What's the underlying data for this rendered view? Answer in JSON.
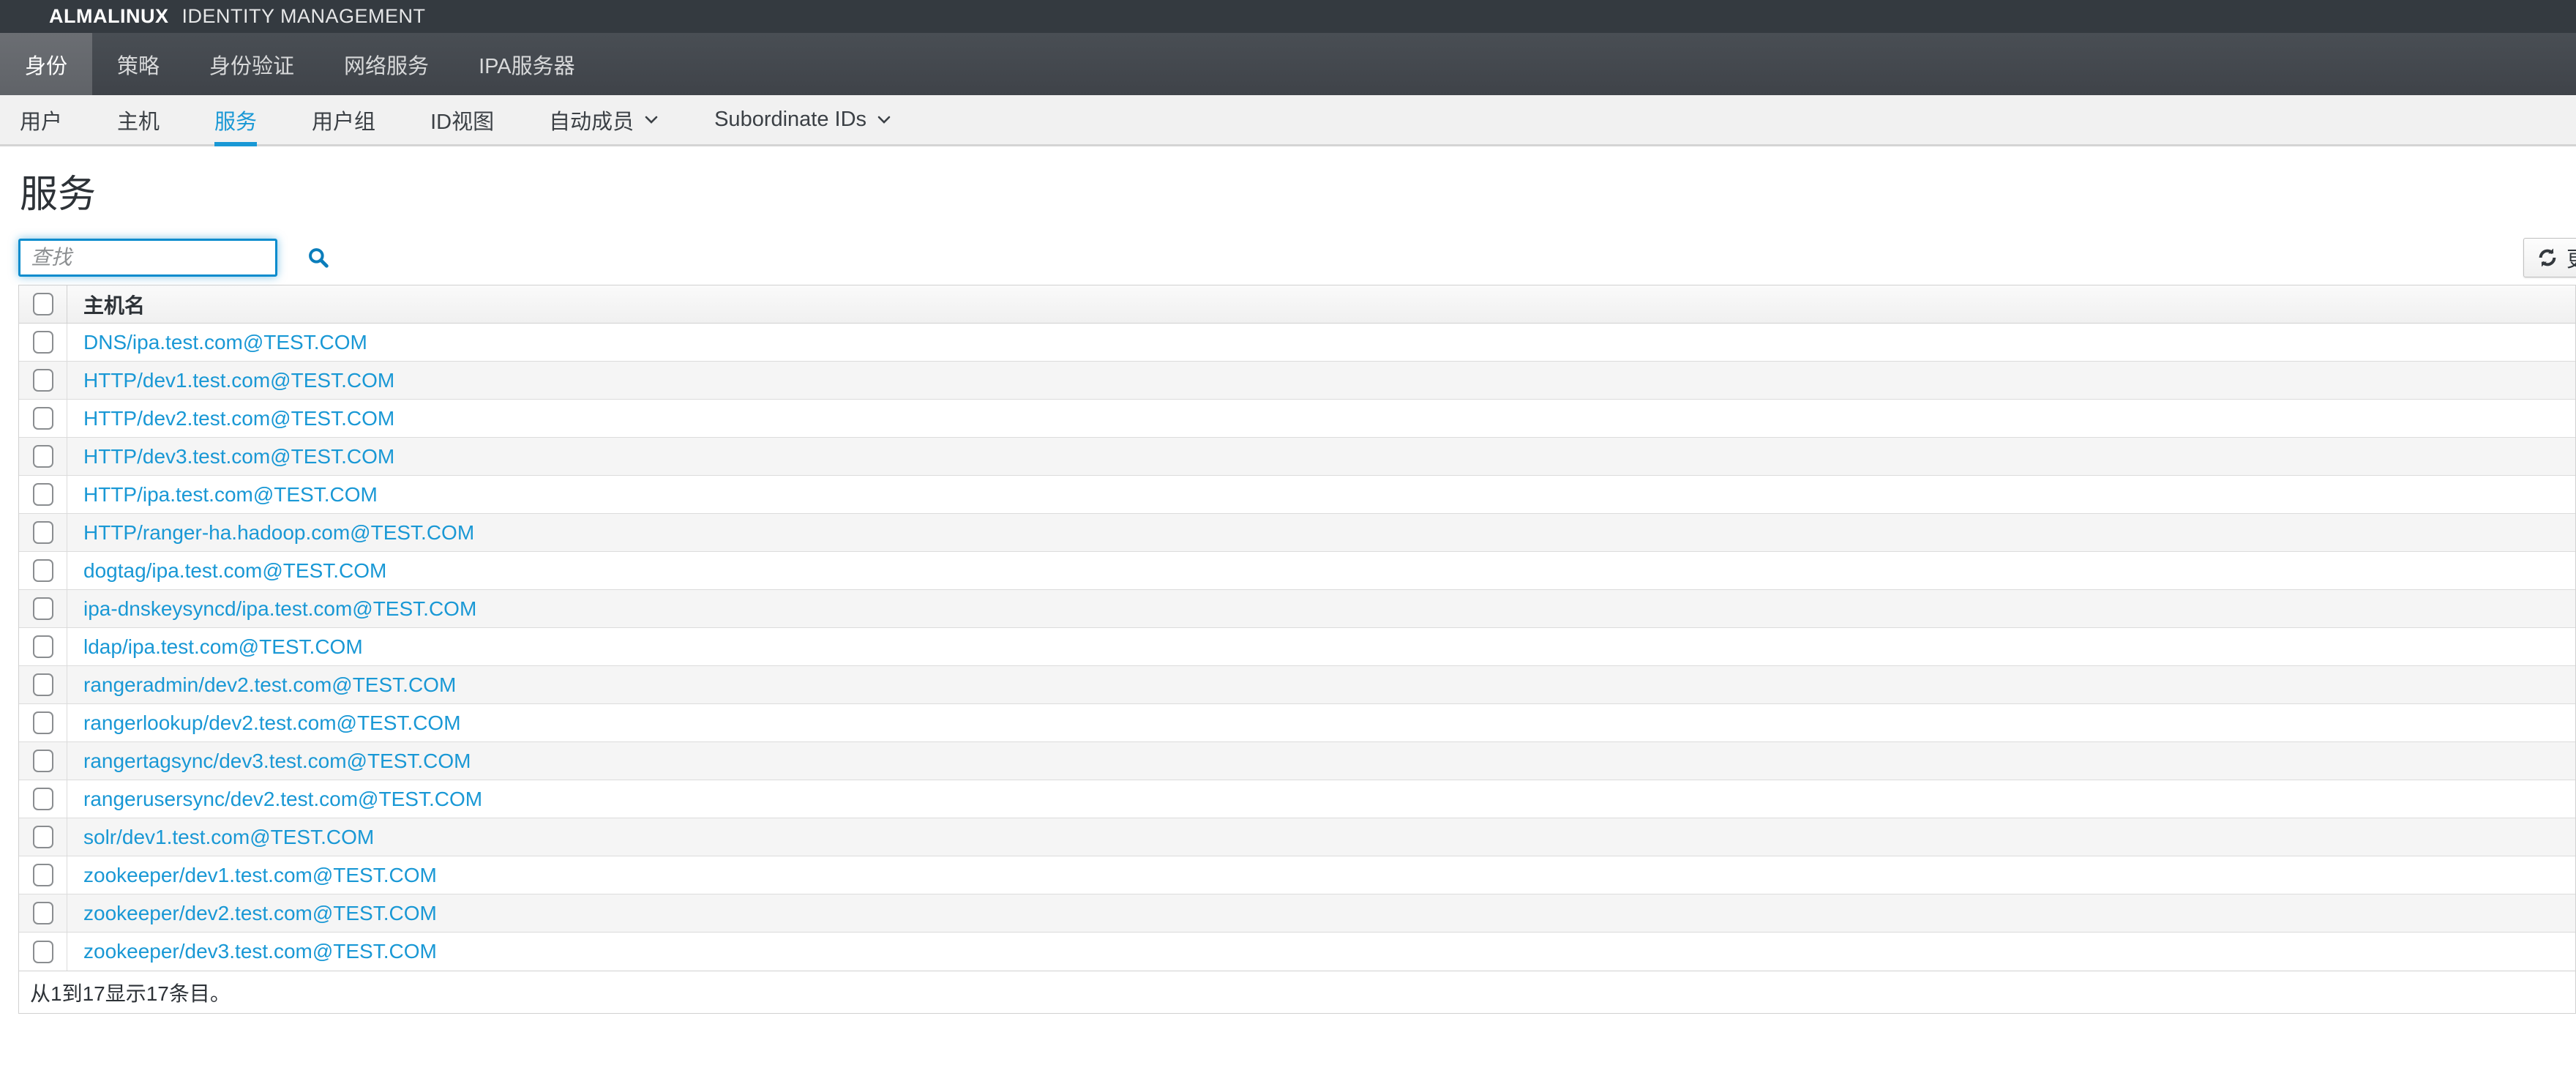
{
  "masthead": {
    "brand_primary": "ALMALINUX",
    "brand_secondary": "IDENTITY MANAGEMENT"
  },
  "primary_nav": {
    "items": [
      {
        "id": "identity",
        "label": "身份",
        "active": true
      },
      {
        "id": "policy",
        "label": "策略",
        "active": false
      },
      {
        "id": "authentication",
        "label": "身份验证",
        "active": false
      },
      {
        "id": "network-services",
        "label": "网络服务",
        "active": false
      },
      {
        "id": "ipa-server",
        "label": "IPA服务器",
        "active": false
      }
    ]
  },
  "secondary_nav": {
    "items": [
      {
        "id": "users",
        "label": "用户",
        "active": false,
        "caret": false
      },
      {
        "id": "hosts",
        "label": "主机",
        "active": false,
        "caret": false
      },
      {
        "id": "services",
        "label": "服务",
        "active": true,
        "caret": false
      },
      {
        "id": "user-groups",
        "label": "用户组",
        "active": false,
        "caret": false
      },
      {
        "id": "id-views",
        "label": "ID视图",
        "active": false,
        "caret": false
      },
      {
        "id": "automember",
        "label": "自动成员",
        "active": false,
        "caret": true
      },
      {
        "id": "subordinate-ids",
        "label": "Subordinate IDs",
        "active": false,
        "caret": true
      }
    ]
  },
  "page": {
    "title": "服务"
  },
  "search": {
    "placeholder": "查找",
    "value": ""
  },
  "toolbar": {
    "refresh_label": "更新"
  },
  "table": {
    "columns": [
      "主机名"
    ],
    "select_all_checked": false,
    "rows": [
      {
        "principal": "DNS/ipa.test.com@TEST.COM",
        "checked": false
      },
      {
        "principal": "HTTP/dev1.test.com@TEST.COM",
        "checked": false
      },
      {
        "principal": "HTTP/dev2.test.com@TEST.COM",
        "checked": false
      },
      {
        "principal": "HTTP/dev3.test.com@TEST.COM",
        "checked": false
      },
      {
        "principal": "HTTP/ipa.test.com@TEST.COM",
        "checked": false
      },
      {
        "principal": "HTTP/ranger-ha.hadoop.com@TEST.COM",
        "checked": false
      },
      {
        "principal": "dogtag/ipa.test.com@TEST.COM",
        "checked": false
      },
      {
        "principal": "ipa-dnskeysyncd/ipa.test.com@TEST.COM",
        "checked": false
      },
      {
        "principal": "ldap/ipa.test.com@TEST.COM",
        "checked": false
      },
      {
        "principal": "rangeradmin/dev2.test.com@TEST.COM",
        "checked": false
      },
      {
        "principal": "rangerlookup/dev2.test.com@TEST.COM",
        "checked": false
      },
      {
        "principal": "rangertagsync/dev3.test.com@TEST.COM",
        "checked": false
      },
      {
        "principal": "rangerusersync/dev2.test.com@TEST.COM",
        "checked": false
      },
      {
        "principal": "solr/dev1.test.com@TEST.COM",
        "checked": false
      },
      {
        "principal": "zookeeper/dev1.test.com@TEST.COM",
        "checked": false
      },
      {
        "principal": "zookeeper/dev2.test.com@TEST.COM",
        "checked": false
      },
      {
        "principal": "zookeeper/dev3.test.com@TEST.COM",
        "checked": false
      }
    ],
    "summary": "从1到17显示17条目。"
  },
  "colors": {
    "masthead_bg": "#343a40",
    "primary_nav_bg": "#43484e",
    "active_tab_bg": "#65686d",
    "accent_blue": "#1998d5",
    "search_border": "#0a8ccd",
    "stripe": "#f5f5f5",
    "border": "#d1d1d1"
  }
}
